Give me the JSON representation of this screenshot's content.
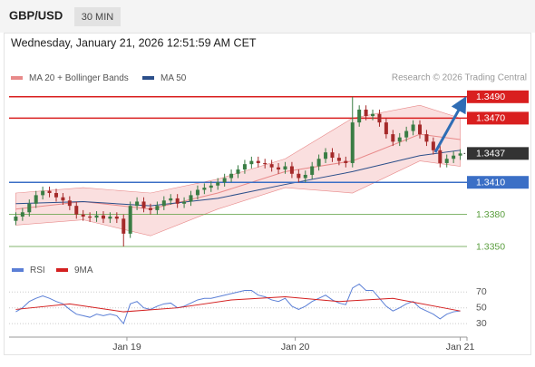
{
  "header": {
    "symbol": "GBP/USD",
    "interval": "30 MIN",
    "timestamp": "Wednesday, January 21, 2026 12:51:59 AM CET",
    "source": "Research © 2026 Trading Central"
  },
  "chart_data": [
    {
      "type": "candlestick",
      "xlim": [
        -1,
        67
      ],
      "ylim": [
        1.3339,
        1.35
      ],
      "up_color": "#3a7d44",
      "down_color": "#a52a2a",
      "open": [
        1.3374,
        1.3378,
        1.3382,
        1.339,
        1.3398,
        1.3402,
        1.34,
        1.3396,
        1.3393,
        1.3388,
        1.338,
        1.3378,
        1.3377,
        1.3379,
        1.3376,
        1.3378,
        1.3376,
        1.3362,
        1.3388,
        1.3392,
        1.3386,
        1.3384,
        1.3388,
        1.3393,
        1.3395,
        1.339,
        1.3392,
        1.3398,
        1.3403,
        1.3405,
        1.3407,
        1.341,
        1.3414,
        1.3418,
        1.3422,
        1.3427,
        1.343,
        1.3428,
        1.3427,
        1.3424,
        1.3422,
        1.3425,
        1.3418,
        1.3414,
        1.3417,
        1.3425,
        1.3432,
        1.3438,
        1.3433,
        1.343,
        1.3428,
        1.3466,
        1.3478,
        1.3472,
        1.3474,
        1.3466,
        1.3455,
        1.3448,
        1.3452,
        1.3458,
        1.3464,
        1.3455,
        1.3448,
        1.344,
        1.3428,
        1.3432,
        1.3435
      ],
      "high": [
        1.3382,
        1.3386,
        1.3394,
        1.3402,
        1.3406,
        1.3406,
        1.3404,
        1.34,
        1.3397,
        1.3392,
        1.3384,
        1.3382,
        1.3383,
        1.3383,
        1.3382,
        1.3382,
        1.338,
        1.3392,
        1.3396,
        1.3396,
        1.339,
        1.3392,
        1.3397,
        1.3399,
        1.3399,
        1.3396,
        1.3402,
        1.3407,
        1.3409,
        1.3411,
        1.3414,
        1.3418,
        1.3422,
        1.3426,
        1.3431,
        1.3434,
        1.3434,
        1.3432,
        1.3431,
        1.3428,
        1.3429,
        1.3429,
        1.3422,
        1.3421,
        1.3429,
        1.3436,
        1.3442,
        1.3442,
        1.3437,
        1.3434,
        1.349,
        1.3482,
        1.3482,
        1.3478,
        1.3478,
        1.347,
        1.3459,
        1.3456,
        1.3462,
        1.3468,
        1.3468,
        1.3459,
        1.3452,
        1.3444,
        1.3436,
        1.3439,
        1.3441
      ],
      "low": [
        1.337,
        1.3374,
        1.3378,
        1.3386,
        1.3394,
        1.3396,
        1.3392,
        1.3389,
        1.3384,
        1.3376,
        1.3374,
        1.3373,
        1.3373,
        1.3372,
        1.3372,
        1.3372,
        1.335,
        1.3358,
        1.3384,
        1.3382,
        1.338,
        1.338,
        1.3384,
        1.3389,
        1.3386,
        1.3386,
        1.3388,
        1.3394,
        1.3399,
        1.3401,
        1.3403,
        1.3406,
        1.341,
        1.3414,
        1.3418,
        1.3423,
        1.3424,
        1.3423,
        1.342,
        1.3418,
        1.3418,
        1.3414,
        1.341,
        1.341,
        1.3413,
        1.3421,
        1.3428,
        1.3429,
        1.3426,
        1.3424,
        1.3424,
        1.3462,
        1.3468,
        1.3468,
        1.3462,
        1.3451,
        1.3444,
        1.3444,
        1.3448,
        1.3454,
        1.3451,
        1.3444,
        1.3436,
        1.3424,
        1.3424,
        1.3428,
        1.3431
      ],
      "close": [
        1.3378,
        1.3382,
        1.339,
        1.3398,
        1.3402,
        1.34,
        1.3396,
        1.3393,
        1.3388,
        1.338,
        1.3378,
        1.3377,
        1.3379,
        1.3376,
        1.3378,
        1.3376,
        1.3362,
        1.3388,
        1.3392,
        1.3386,
        1.3384,
        1.3388,
        1.3393,
        1.3395,
        1.339,
        1.3392,
        1.3398,
        1.3403,
        1.3405,
        1.3407,
        1.341,
        1.3414,
        1.3418,
        1.3422,
        1.3427,
        1.343,
        1.3428,
        1.3427,
        1.3424,
        1.3422,
        1.3425,
        1.3418,
        1.3414,
        1.3417,
        1.3425,
        1.3432,
        1.3438,
        1.3433,
        1.343,
        1.3428,
        1.3466,
        1.3478,
        1.3472,
        1.3474,
        1.3466,
        1.3455,
        1.3448,
        1.3452,
        1.3458,
        1.3464,
        1.3455,
        1.3448,
        1.344,
        1.3428,
        1.3432,
        1.3435,
        1.3437
      ],
      "series": [
        {
          "name": "MA 20 + Bollinger Bands",
          "color": "#e88a8a",
          "band_color": "#f6c9c9",
          "x": [
            0,
            10,
            20,
            30,
            40,
            50,
            60,
            66
          ],
          "values": [
            1.3385,
            1.3392,
            1.3385,
            1.34,
            1.342,
            1.343,
            1.3455,
            1.345
          ],
          "upper": [
            1.34,
            1.3405,
            1.34,
            1.3413,
            1.3432,
            1.347,
            1.3482,
            1.347
          ],
          "lower": [
            1.337,
            1.3375,
            1.336,
            1.3385,
            1.3405,
            1.34,
            1.343,
            1.3425
          ]
        },
        {
          "name": "MA 50",
          "color": "#2c4f8a",
          "x": [
            0,
            10,
            20,
            30,
            40,
            50,
            60,
            66
          ],
          "values": [
            1.339,
            1.3392,
            1.3388,
            1.3395,
            1.3408,
            1.342,
            1.3435,
            1.344
          ]
        }
      ],
      "levels": [
        {
          "value": 1.349,
          "label": "1.3490",
          "color": "#d91f1f",
          "boxed": true,
          "style": "solid"
        },
        {
          "value": 1.347,
          "label": "1.3470",
          "color": "#d91f1f",
          "boxed": true,
          "style": "solid"
        },
        {
          "value": 1.3437,
          "label": "1.3437",
          "color": "#333333",
          "boxed": true,
          "style": "dotted"
        },
        {
          "value": 1.341,
          "label": "1.3410",
          "color": "#3b6fc6",
          "boxed": true,
          "style": "solid"
        },
        {
          "value": 1.338,
          "label": "1.3380",
          "color": "#5a9e3e",
          "boxed": false,
          "style": "solid"
        },
        {
          "value": 1.335,
          "label": "1.3350",
          "color": "#5a9e3e",
          "boxed": false,
          "style": "solid"
        }
      ]
    },
    {
      "type": "line",
      "xlim": [
        -1,
        67
      ],
      "ylim": [
        13,
        84
      ],
      "yticks": [
        30,
        50,
        70
      ],
      "xticks": [
        {
          "value": 16.5,
          "label": "Jan 19"
        },
        {
          "value": 41.5,
          "label": "Jan 20"
        },
        {
          "value": 66,
          "label": "Jan 21"
        }
      ],
      "series": [
        {
          "name": "RSI",
          "color": "#5b7fd6",
          "values": [
            45,
            50,
            58,
            62,
            65,
            62,
            58,
            55,
            48,
            42,
            40,
            38,
            42,
            40,
            42,
            40,
            30,
            55,
            58,
            50,
            48,
            52,
            55,
            56,
            50,
            52,
            56,
            60,
            62,
            62,
            64,
            66,
            68,
            70,
            72,
            72,
            66,
            64,
            60,
            58,
            62,
            52,
            48,
            52,
            58,
            62,
            66,
            60,
            56,
            54,
            75,
            80,
            72,
            72,
            62,
            52,
            46,
            50,
            55,
            58,
            50,
            46,
            42,
            36,
            42,
            45,
            46
          ]
        },
        {
          "name": "9MA",
          "color": "#d42020",
          "x": [
            0,
            8,
            16,
            24,
            32,
            40,
            48,
            56,
            66
          ],
          "values": [
            48,
            55,
            45,
            50,
            60,
            64,
            58,
            62,
            46
          ]
        }
      ]
    }
  ]
}
